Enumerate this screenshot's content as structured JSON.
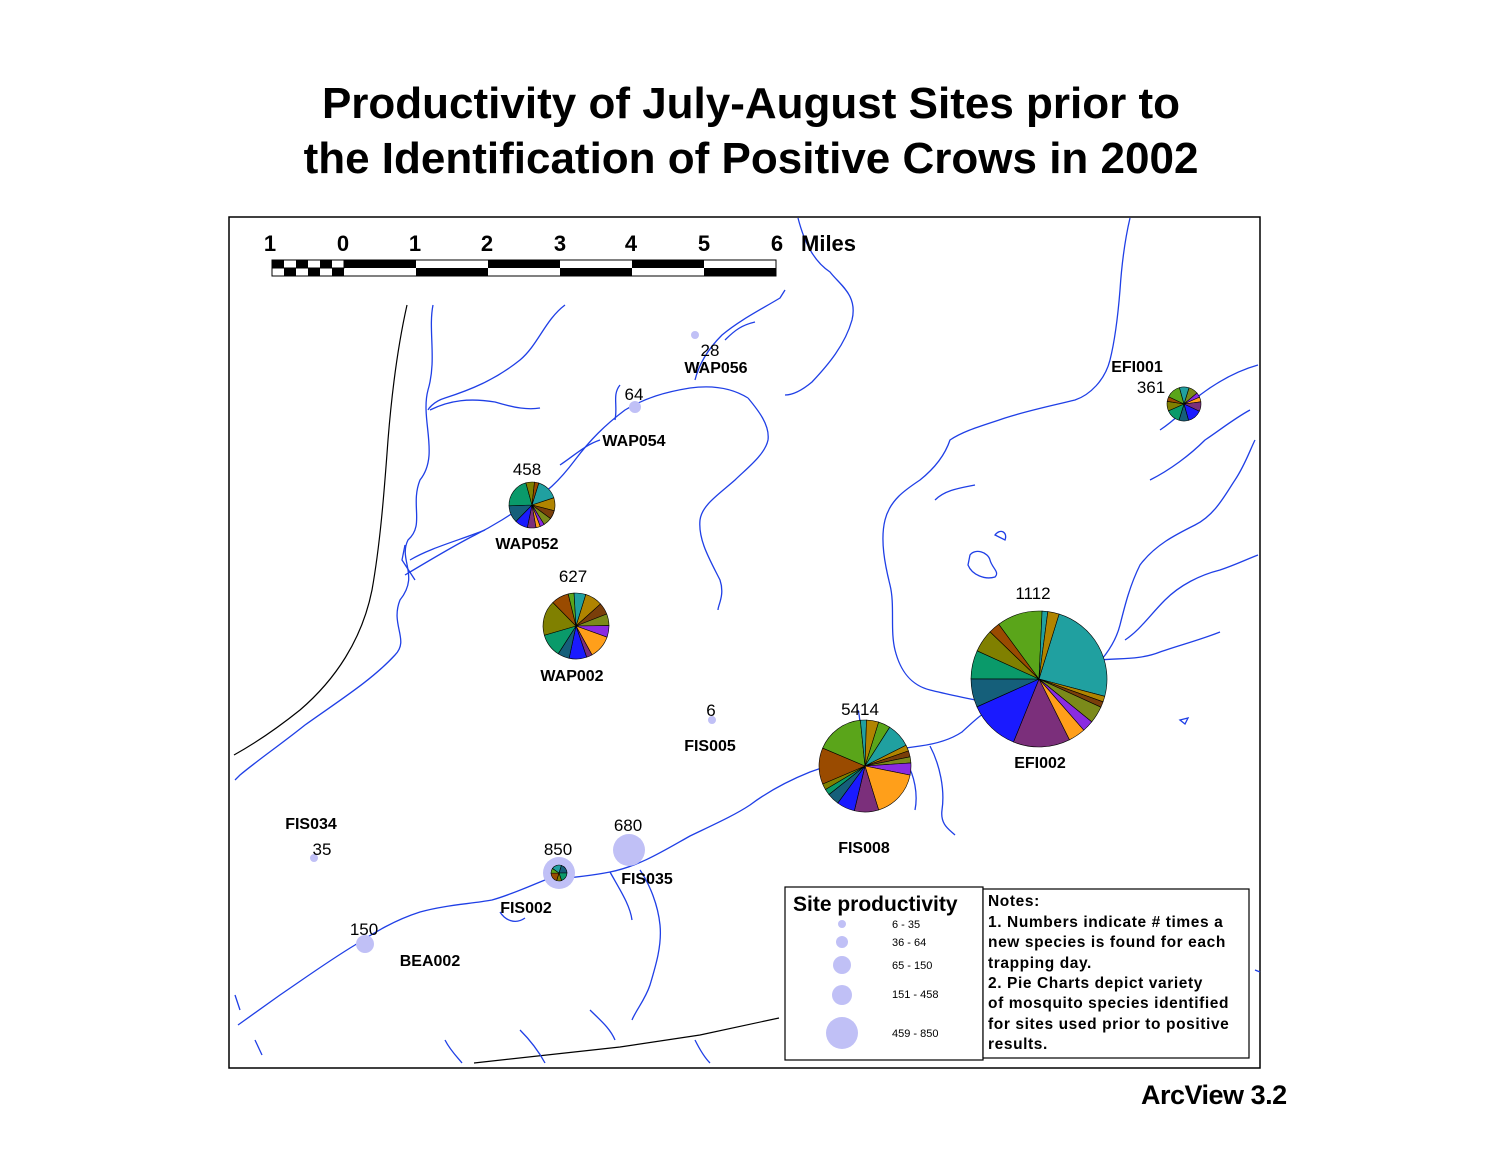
{
  "title": {
    "line1": "Productivity of July-August Sites prior to",
    "line2": "the Identification of Positive Crows in 2002"
  },
  "footer": "ArcView 3.2",
  "scale_bar": {
    "ticks": [
      "1",
      "0",
      "1",
      "2",
      "3",
      "4",
      "5",
      "6"
    ],
    "unit": "Miles"
  },
  "colors": {
    "river": "#1f3fe6",
    "coast": "#000000",
    "productivity_symbol": "#c0c0f6",
    "pie_palette": [
      "#155f7a",
      "#7b8a1a",
      "#9a4b00",
      "#7b2f7b",
      "#b08400",
      "#0a9a6a",
      "#8a2be2",
      "#5aa51a",
      "#1a1aff",
      "#7a3f0a",
      "#808000",
      "#ff9f1a",
      "#20a0a0"
    ]
  },
  "sites": [
    {
      "id": "WAP056",
      "count": "28",
      "symbol": "dot"
    },
    {
      "id": "WAP054",
      "count": "64",
      "symbol": "dot"
    },
    {
      "id": "WAP052",
      "count": "458",
      "symbol": "pie"
    },
    {
      "id": "WAP002",
      "count": "627",
      "symbol": "pie"
    },
    {
      "id": "FIS005",
      "count": "6",
      "symbol": "dot"
    },
    {
      "id": "FIS008",
      "count": "5414",
      "symbol": "pie"
    },
    {
      "id": "EFI002",
      "count": "1112",
      "symbol": "pie"
    },
    {
      "id": "EFI001",
      "count": "361",
      "symbol": "pie"
    },
    {
      "id": "FIS034",
      "count": "35",
      "symbol": "dot"
    },
    {
      "id": "FIS002",
      "count": "850",
      "symbol": "pie+dot"
    },
    {
      "id": "FIS035",
      "count": "680",
      "symbol": "dot"
    },
    {
      "id": "BEA002",
      "count": "150",
      "symbol": "dot"
    }
  ],
  "legend": {
    "title": "Site productivity",
    "classes": [
      "6 - 35",
      "36 - 64",
      "65 - 150",
      "151 - 458",
      "459 - 850"
    ]
  },
  "notes": {
    "lines": [
      "Notes:",
      "1.  Numbers indicate # times a",
      "new species is found for each",
      "trapping day.",
      "2.  Pie Charts depict variety",
      "of mosquito species identified",
      "for sites used prior to positive",
      "results."
    ]
  }
}
